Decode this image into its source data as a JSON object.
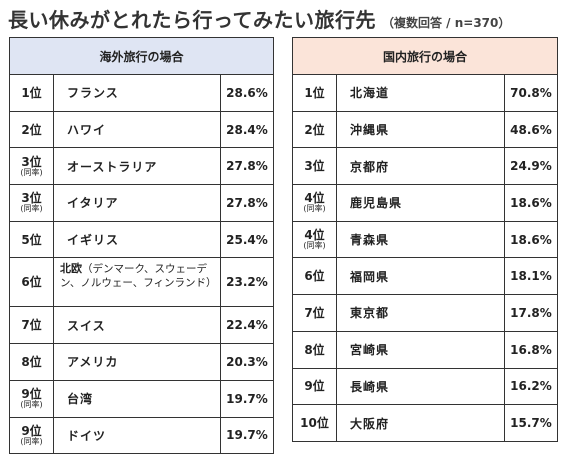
{
  "title": "長い休みがとれたら行ってみたい旅行先",
  "subtitle": "（複数回答 / n=370）",
  "overseas": {
    "header": "海外旅行の場合",
    "rows": [
      {
        "rank": "1位",
        "tie": "",
        "name": "フランス",
        "note": "",
        "pct": "28.6%"
      },
      {
        "rank": "2位",
        "tie": "",
        "name": "ハワイ",
        "note": "",
        "pct": "28.4%"
      },
      {
        "rank": "3位",
        "tie": "(同率)",
        "name": "オーストラリア",
        "note": "",
        "pct": "27.8%"
      },
      {
        "rank": "3位",
        "tie": "(同率)",
        "name": "イタリア",
        "note": "",
        "pct": "27.8%"
      },
      {
        "rank": "5位",
        "tie": "",
        "name": "イギリス",
        "note": "",
        "pct": "25.4%"
      },
      {
        "rank": "6位",
        "tie": "",
        "name": "北欧",
        "note": "（デンマーク、スウェーデン、ノルウェー、フィンランド）",
        "pct": "23.2%"
      },
      {
        "rank": "7位",
        "tie": "",
        "name": "スイス",
        "note": "",
        "pct": "22.4%"
      },
      {
        "rank": "8位",
        "tie": "",
        "name": "アメリカ",
        "note": "",
        "pct": "20.3%"
      },
      {
        "rank": "9位",
        "tie": "(同率)",
        "name": "台湾",
        "note": "",
        "pct": "19.7%"
      },
      {
        "rank": "9位",
        "tie": "(同率)",
        "name": "ドイツ",
        "note": "",
        "pct": "19.7%"
      }
    ]
  },
  "domestic": {
    "header": "国内旅行の場合",
    "rows": [
      {
        "rank": "1位",
        "tie": "",
        "name": "北海道",
        "pct": "70.8%"
      },
      {
        "rank": "2位",
        "tie": "",
        "name": "沖縄県",
        "pct": "48.6%"
      },
      {
        "rank": "3位",
        "tie": "",
        "name": "京都府",
        "pct": "24.9%"
      },
      {
        "rank": "4位",
        "tie": "(同率)",
        "name": "鹿児島県",
        "pct": "18.6%"
      },
      {
        "rank": "4位",
        "tie": "(同率)",
        "name": "青森県",
        "pct": "18.6%"
      },
      {
        "rank": "6位",
        "tie": "",
        "name": "福岡県",
        "pct": "18.1%"
      },
      {
        "rank": "7位",
        "tie": "",
        "name": "東京都",
        "pct": "17.8%"
      },
      {
        "rank": "8位",
        "tie": "",
        "name": "宮崎県",
        "pct": "16.8%"
      },
      {
        "rank": "9位",
        "tie": "",
        "name": "長崎県",
        "pct": "16.2%"
      },
      {
        "rank": "10位",
        "tie": "",
        "name": "大阪府",
        "pct": "15.7%"
      }
    ]
  }
}
